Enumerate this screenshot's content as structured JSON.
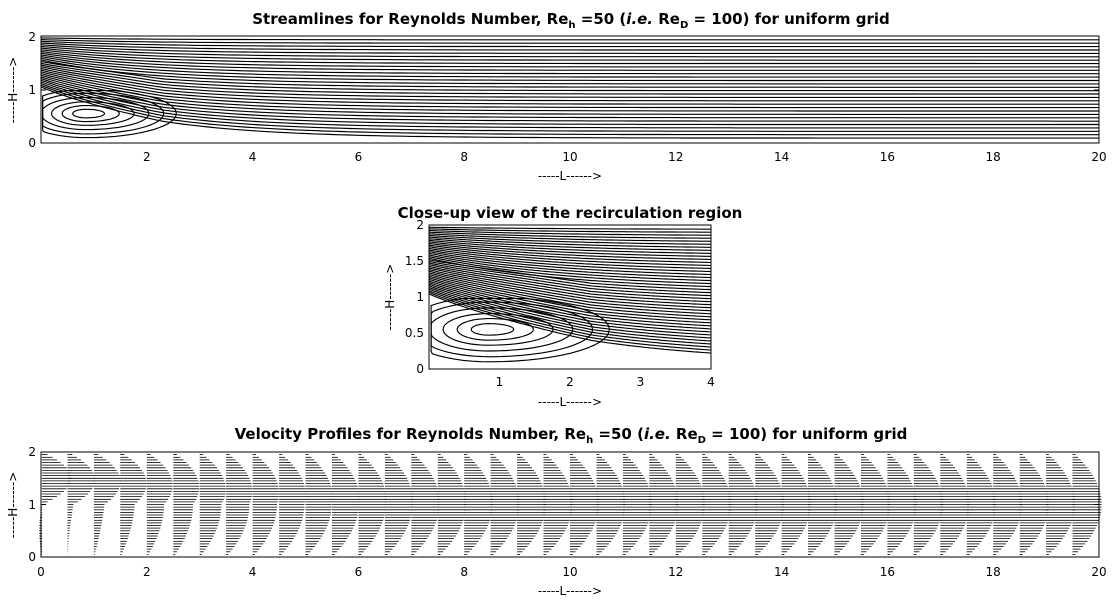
{
  "chart_data": [
    {
      "type": "streamline",
      "title": "Streamlines for Reynolds Number, Re",
      "title_sub": "h",
      "title_mid": " =50 (",
      "title_ie": "i.e.",
      "title_re": " Re",
      "title_sub2": "D",
      "title_end": " = 100) for uniform grid",
      "xlabel": "-----L------>",
      "ylabel": "-----H------>",
      "xlim": [
        0,
        20
      ],
      "ylim": [
        0,
        2
      ],
      "xticks": [
        "2",
        "4",
        "6",
        "8",
        "10",
        "12",
        "14",
        "16",
        "18",
        "20"
      ],
      "yticks": [
        "0",
        "1",
        "2"
      ],
      "inlet_step_height": 1,
      "recirculation_center": [
        0.85,
        0.55
      ],
      "reattachment_x": 2.3
    },
    {
      "type": "streamline",
      "title": "Close-up view of the recirculation region",
      "xlabel": "-----L------>",
      "ylabel": "-----H------>",
      "xlim": [
        0,
        4
      ],
      "ylim": [
        0,
        2
      ],
      "xticks": [
        "1",
        "2",
        "3",
        "4"
      ],
      "yticks": [
        "0",
        "0.5",
        "1",
        "1.5",
        "2"
      ],
      "recirculation_center": [
        0.85,
        0.55
      ],
      "reattachment_x": 2.3
    },
    {
      "type": "quiver",
      "title": "Velocity Profiles for Reynolds Number, Re",
      "title_sub": "h",
      "title_mid": " =50 (",
      "title_ie": "i.e.",
      "title_re": " Re",
      "title_sub2": "D",
      "title_end": " = 100) for uniform grid",
      "xlabel": "-----L------>",
      "ylabel": "-----H------>",
      "xlim": [
        0,
        20
      ],
      "ylim": [
        0,
        2
      ],
      "xticks": [
        "0",
        "2",
        "4",
        "6",
        "8",
        "10",
        "12",
        "14",
        "16",
        "18",
        "20"
      ],
      "yticks": [
        "0",
        "1",
        "2"
      ],
      "profile_stations_x": [
        0,
        0.5,
        1,
        1.5,
        2,
        2.5,
        3,
        3.5,
        4,
        4.5,
        5,
        5.5,
        6,
        6.5,
        7,
        7.5,
        8,
        8.5,
        9,
        9.5,
        10,
        10.5,
        11,
        11.5,
        12,
        12.5,
        13,
        13.5,
        14,
        14.5,
        15,
        15.5,
        16,
        16.5,
        17,
        17.5,
        18,
        18.5,
        19,
        19.5
      ]
    }
  ]
}
